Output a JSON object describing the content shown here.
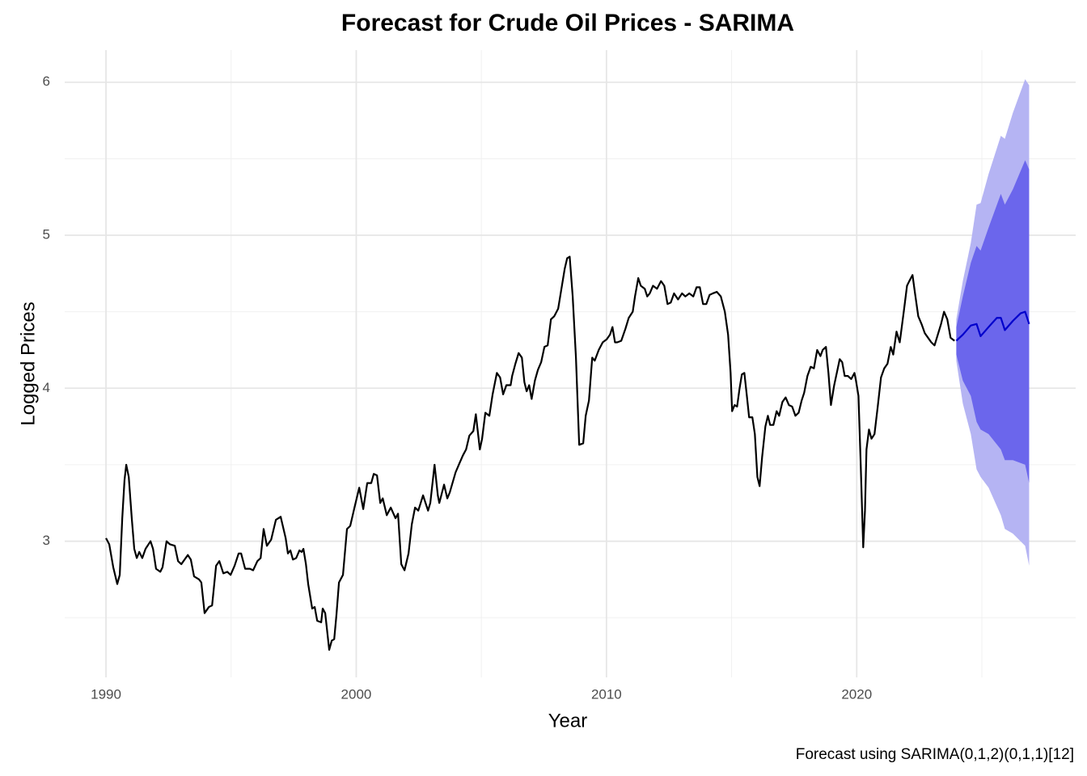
{
  "chart_data": {
    "type": "line",
    "title": "Forecast for Crude Oil Prices - SARIMA",
    "x_label": "Year",
    "y_label": "Logged Prices",
    "caption": "Forecast using SARIMA(0,1,2)(0,1,1)[12]",
    "xlim": [
      1988.35,
      2028.75
    ],
    "ylim": [
      2.11,
      6.21
    ],
    "xticks": [
      1990,
      2000,
      2010,
      2020
    ],
    "yticks": [
      3,
      4,
      5,
      6
    ],
    "grid": true,
    "bands": [
      {
        "color": "#b5b4f3",
        "x": [
          2023.98,
          2024.24,
          2024.56,
          2024.79,
          2024.95,
          2025.27,
          2025.76,
          2025.92,
          2026.24,
          2026.73,
          2026.89
        ],
        "upper": [
          4.45,
          4.7,
          4.95,
          5.2,
          5.21,
          5.4,
          5.65,
          5.63,
          5.8,
          6.02,
          5.98
        ],
        "lower": [
          4.18,
          3.9,
          3.7,
          3.47,
          3.42,
          3.35,
          3.17,
          3.08,
          3.05,
          2.97,
          2.84
        ]
      },
      {
        "color": "#6b66ec",
        "x": [
          2023.98,
          2024.24,
          2024.56,
          2024.79,
          2024.95,
          2025.27,
          2025.76,
          2025.92,
          2026.24,
          2026.73,
          2026.89
        ],
        "upper": [
          4.4,
          4.6,
          4.82,
          4.93,
          4.9,
          5.05,
          5.27,
          5.2,
          5.3,
          5.49,
          5.43
        ],
        "lower": [
          4.22,
          4.05,
          3.95,
          3.78,
          3.73,
          3.7,
          3.6,
          3.53,
          3.53,
          3.5,
          3.38
        ]
      }
    ],
    "series": [
      {
        "color": "#000000",
        "x": [
          1990.0,
          1990.13,
          1990.29,
          1990.45,
          1990.55,
          1990.65,
          1990.74,
          1990.81,
          1990.91,
          1991.03,
          1991.13,
          1991.23,
          1991.33,
          1991.45,
          1991.58,
          1991.78,
          1991.88,
          1992.0,
          1992.17,
          1992.26,
          1992.42,
          1992.55,
          1992.75,
          1992.88,
          1993.01,
          1993.27,
          1993.39,
          1993.52,
          1993.72,
          1993.81,
          1993.94,
          1994.11,
          1994.24,
          1994.4,
          1994.53,
          1994.69,
          1994.85,
          1994.98,
          1995.14,
          1995.3,
          1995.4,
          1995.56,
          1995.75,
          1995.88,
          1996.05,
          1996.18,
          1996.3,
          1996.43,
          1996.6,
          1996.79,
          1996.98,
          1997.18,
          1997.27,
          1997.37,
          1997.47,
          1997.6,
          1997.73,
          1997.82,
          1997.89,
          1997.99,
          1998.08,
          1998.24,
          1998.34,
          1998.44,
          1998.6,
          1998.66,
          1998.76,
          1998.92,
          1999.02,
          1999.12,
          1999.21,
          1999.31,
          1999.47,
          1999.63,
          1999.76,
          1999.93,
          2000.12,
          2000.28,
          2000.44,
          2000.6,
          2000.7,
          2000.83,
          2000.96,
          2001.06,
          2001.22,
          2001.38,
          2001.57,
          2001.67,
          2001.8,
          2001.93,
          2002.09,
          2002.22,
          2002.35,
          2002.48,
          2002.67,
          2002.77,
          2002.87,
          2002.96,
          2003.13,
          2003.26,
          2003.32,
          2003.51,
          2003.64,
          2003.74,
          2003.97,
          2004.1,
          2004.26,
          2004.39,
          2004.52,
          2004.68,
          2004.78,
          2004.94,
          2005.03,
          2005.16,
          2005.32,
          2005.45,
          2005.62,
          2005.75,
          2005.87,
          2006.0,
          2006.17,
          2006.23,
          2006.36,
          2006.49,
          2006.62,
          2006.72,
          2006.81,
          2006.91,
          2007.01,
          2007.14,
          2007.26,
          2007.39,
          2007.52,
          2007.65,
          2007.78,
          2007.91,
          2008.07,
          2008.2,
          2008.33,
          2008.43,
          2008.53,
          2008.65,
          2008.78,
          2008.91,
          2009.07,
          2009.17,
          2009.3,
          2009.43,
          2009.53,
          2009.69,
          2009.85,
          2010.01,
          2010.14,
          2010.24,
          2010.34,
          2010.43,
          2010.59,
          2010.76,
          2010.89,
          2011.05,
          2011.14,
          2011.27,
          2011.37,
          2011.53,
          2011.63,
          2011.73,
          2011.86,
          2012.02,
          2012.18,
          2012.31,
          2012.44,
          2012.57,
          2012.7,
          2012.86,
          2013.02,
          2013.15,
          2013.31,
          2013.47,
          2013.6,
          2013.73,
          2013.86,
          2013.99,
          2014.12,
          2014.25,
          2014.41,
          2014.57,
          2014.73,
          2014.86,
          2014.96,
          2015.02,
          2015.12,
          2015.22,
          2015.32,
          2015.41,
          2015.51,
          2015.61,
          2015.7,
          2015.83,
          2015.93,
          2016.03,
          2016.12,
          2016.22,
          2016.35,
          2016.45,
          2016.54,
          2016.67,
          2016.8,
          2016.9,
          2017.03,
          2017.16,
          2017.29,
          2017.42,
          2017.55,
          2017.68,
          2017.8,
          2017.9,
          2018.03,
          2018.16,
          2018.29,
          2018.42,
          2018.55,
          2018.64,
          2018.77,
          2018.87,
          2018.97,
          2019.1,
          2019.23,
          2019.32,
          2019.42,
          2019.52,
          2019.65,
          2019.78,
          2019.91,
          2019.97,
          2020.07,
          2020.16,
          2020.26,
          2020.33,
          2020.39,
          2020.49,
          2020.59,
          2020.71,
          2020.84,
          2020.97,
          2021.1,
          2021.23,
          2021.36,
          2021.46,
          2021.59,
          2021.72,
          2021.88,
          2022.01,
          2022.1,
          2022.23,
          2022.33,
          2022.46,
          2022.59,
          2022.72,
          2022.85,
          2022.98,
          2023.11,
          2023.24,
          2023.37,
          2023.49,
          2023.62,
          2023.75,
          2023.91
        ],
        "values": [
          3.02,
          2.98,
          2.83,
          2.72,
          2.78,
          3.15,
          3.4,
          3.5,
          3.42,
          3.15,
          2.95,
          2.89,
          2.93,
          2.89,
          2.95,
          3.0,
          2.95,
          2.82,
          2.8,
          2.83,
          3.0,
          2.98,
          2.97,
          2.87,
          2.85,
          2.91,
          2.88,
          2.77,
          2.75,
          2.73,
          2.53,
          2.57,
          2.58,
          2.84,
          2.87,
          2.79,
          2.8,
          2.78,
          2.84,
          2.92,
          2.92,
          2.82,
          2.82,
          2.81,
          2.87,
          2.89,
          3.08,
          2.97,
          3.01,
          3.14,
          3.16,
          3.02,
          2.92,
          2.94,
          2.88,
          2.89,
          2.94,
          2.93,
          2.95,
          2.85,
          2.72,
          2.56,
          2.57,
          2.48,
          2.47,
          2.56,
          2.53,
          2.29,
          2.35,
          2.36,
          2.52,
          2.73,
          2.78,
          3.08,
          3.1,
          3.22,
          3.35,
          3.21,
          3.38,
          3.38,
          3.44,
          3.43,
          3.25,
          3.28,
          3.17,
          3.22,
          3.15,
          3.18,
          2.85,
          2.81,
          2.92,
          3.11,
          3.22,
          3.2,
          3.3,
          3.25,
          3.2,
          3.25,
          3.5,
          3.3,
          3.25,
          3.37,
          3.28,
          3.32,
          3.45,
          3.5,
          3.56,
          3.6,
          3.69,
          3.72,
          3.83,
          3.6,
          3.67,
          3.84,
          3.82,
          3.96,
          4.1,
          4.07,
          3.96,
          4.02,
          4.02,
          4.08,
          4.16,
          4.23,
          4.2,
          4.04,
          3.98,
          4.02,
          3.93,
          4.05,
          4.12,
          4.17,
          4.27,
          4.28,
          4.45,
          4.47,
          4.52,
          4.65,
          4.78,
          4.85,
          4.86,
          4.6,
          4.2,
          3.63,
          3.64,
          3.82,
          3.92,
          4.2,
          4.18,
          4.25,
          4.3,
          4.32,
          4.35,
          4.4,
          4.3,
          4.3,
          4.31,
          4.39,
          4.46,
          4.5,
          4.6,
          4.72,
          4.67,
          4.65,
          4.6,
          4.62,
          4.67,
          4.65,
          4.7,
          4.67,
          4.55,
          4.56,
          4.62,
          4.58,
          4.62,
          4.6,
          4.62,
          4.6,
          4.66,
          4.66,
          4.55,
          4.55,
          4.61,
          4.62,
          4.63,
          4.6,
          4.5,
          4.35,
          4.1,
          3.85,
          3.89,
          3.88,
          4.0,
          4.09,
          4.1,
          3.95,
          3.81,
          3.81,
          3.7,
          3.42,
          3.36,
          3.55,
          3.75,
          3.82,
          3.76,
          3.76,
          3.85,
          3.82,
          3.91,
          3.94,
          3.89,
          3.88,
          3.82,
          3.84,
          3.92,
          3.97,
          4.08,
          4.14,
          4.13,
          4.25,
          4.21,
          4.25,
          4.27,
          4.1,
          3.89,
          4.02,
          4.12,
          4.19,
          4.17,
          4.08,
          4.08,
          4.06,
          4.1,
          4.05,
          3.95,
          3.5,
          2.96,
          3.2,
          3.6,
          3.73,
          3.67,
          3.7,
          3.88,
          4.07,
          4.13,
          4.16,
          4.27,
          4.22,
          4.37,
          4.3,
          4.5,
          4.67,
          4.7,
          4.74,
          4.62,
          4.47,
          4.42,
          4.36,
          4.33,
          4.3,
          4.28,
          4.35,
          4.42,
          4.5,
          4.45,
          4.33,
          4.31
        ]
      },
      {
        "color": "#0000cc",
        "x": [
          2023.98,
          2024.24,
          2024.56,
          2024.79,
          2024.95,
          2025.27,
          2025.6,
          2025.76,
          2025.92,
          2026.24,
          2026.55,
          2026.73,
          2026.89
        ],
        "values": [
          4.31,
          4.35,
          4.41,
          4.42,
          4.34,
          4.4,
          4.46,
          4.46,
          4.38,
          4.44,
          4.49,
          4.5,
          4.42
        ]
      }
    ]
  }
}
